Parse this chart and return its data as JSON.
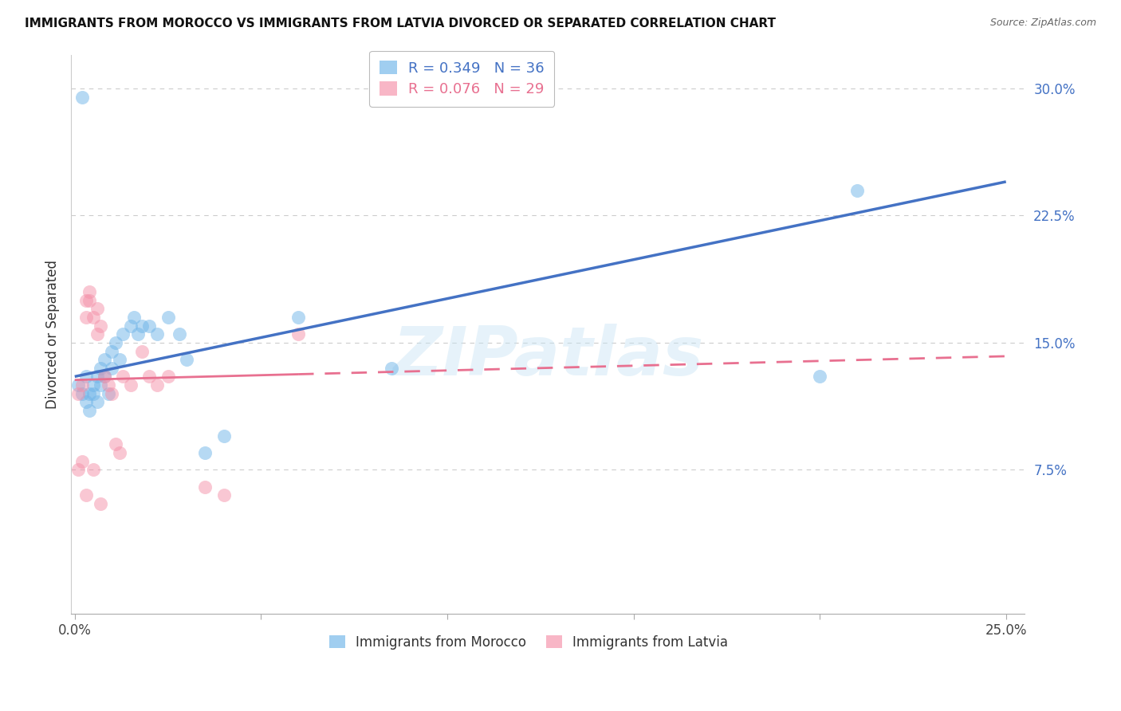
{
  "title": "IMMIGRANTS FROM MOROCCO VS IMMIGRANTS FROM LATVIA DIVORCED OR SEPARATED CORRELATION CHART",
  "source": "Source: ZipAtlas.com",
  "ylabel": "Divorced or Separated",
  "legend_label_blue": "Immigrants from Morocco",
  "legend_label_pink": "Immigrants from Latvia",
  "R_blue": 0.349,
  "N_blue": 36,
  "R_pink": 0.076,
  "N_pink": 29,
  "xlim": [
    -0.001,
    0.255
  ],
  "ylim": [
    -0.01,
    0.32
  ],
  "yticks": [
    0.0,
    0.075,
    0.15,
    0.225,
    0.3
  ],
  "ytick_labels": [
    "",
    "7.5%",
    "15.0%",
    "22.5%",
    "30.0%"
  ],
  "xticks": [
    0.0,
    0.05,
    0.1,
    0.15,
    0.2,
    0.25
  ],
  "xtick_labels": [
    "0.0%",
    "",
    "",
    "",
    "",
    "25.0%"
  ],
  "color_blue": "#6EB4E8",
  "color_pink": "#F590A8",
  "color_blue_line": "#4472C4",
  "color_pink_line": "#E87090",
  "watermark": "ZIPatlas",
  "blue_points_x": [
    0.001,
    0.002,
    0.003,
    0.003,
    0.004,
    0.004,
    0.005,
    0.005,
    0.006,
    0.006,
    0.007,
    0.007,
    0.008,
    0.008,
    0.009,
    0.01,
    0.01,
    0.011,
    0.012,
    0.013,
    0.015,
    0.016,
    0.017,
    0.018,
    0.02,
    0.022,
    0.025,
    0.028,
    0.03,
    0.035,
    0.04,
    0.06,
    0.085,
    0.2,
    0.21,
    0.002
  ],
  "blue_points_y": [
    0.125,
    0.12,
    0.13,
    0.115,
    0.12,
    0.11,
    0.125,
    0.12,
    0.13,
    0.115,
    0.135,
    0.125,
    0.14,
    0.13,
    0.12,
    0.145,
    0.135,
    0.15,
    0.14,
    0.155,
    0.16,
    0.165,
    0.155,
    0.16,
    0.16,
    0.155,
    0.165,
    0.155,
    0.14,
    0.085,
    0.095,
    0.165,
    0.135,
    0.13,
    0.24,
    0.295
  ],
  "pink_points_x": [
    0.001,
    0.002,
    0.002,
    0.003,
    0.003,
    0.004,
    0.004,
    0.005,
    0.005,
    0.006,
    0.006,
    0.007,
    0.008,
    0.009,
    0.01,
    0.011,
    0.012,
    0.013,
    0.015,
    0.018,
    0.02,
    0.022,
    0.025,
    0.035,
    0.04,
    0.001,
    0.003,
    0.007,
    0.06
  ],
  "pink_points_y": [
    0.12,
    0.125,
    0.08,
    0.175,
    0.165,
    0.175,
    0.18,
    0.165,
    0.075,
    0.17,
    0.155,
    0.16,
    0.13,
    0.125,
    0.12,
    0.09,
    0.085,
    0.13,
    0.125,
    0.145,
    0.13,
    0.125,
    0.13,
    0.065,
    0.06,
    0.075,
    0.06,
    0.055,
    0.155
  ],
  "trend_blue_x0": 0.0,
  "trend_blue_y0": 0.13,
  "trend_blue_x1": 0.25,
  "trend_blue_y1": 0.245,
  "trend_pink_x0": 0.0,
  "trend_pink_y0": 0.128,
  "trend_pink_x1": 0.25,
  "trend_pink_y1": 0.142,
  "trend_pink_solid_end": 0.06
}
